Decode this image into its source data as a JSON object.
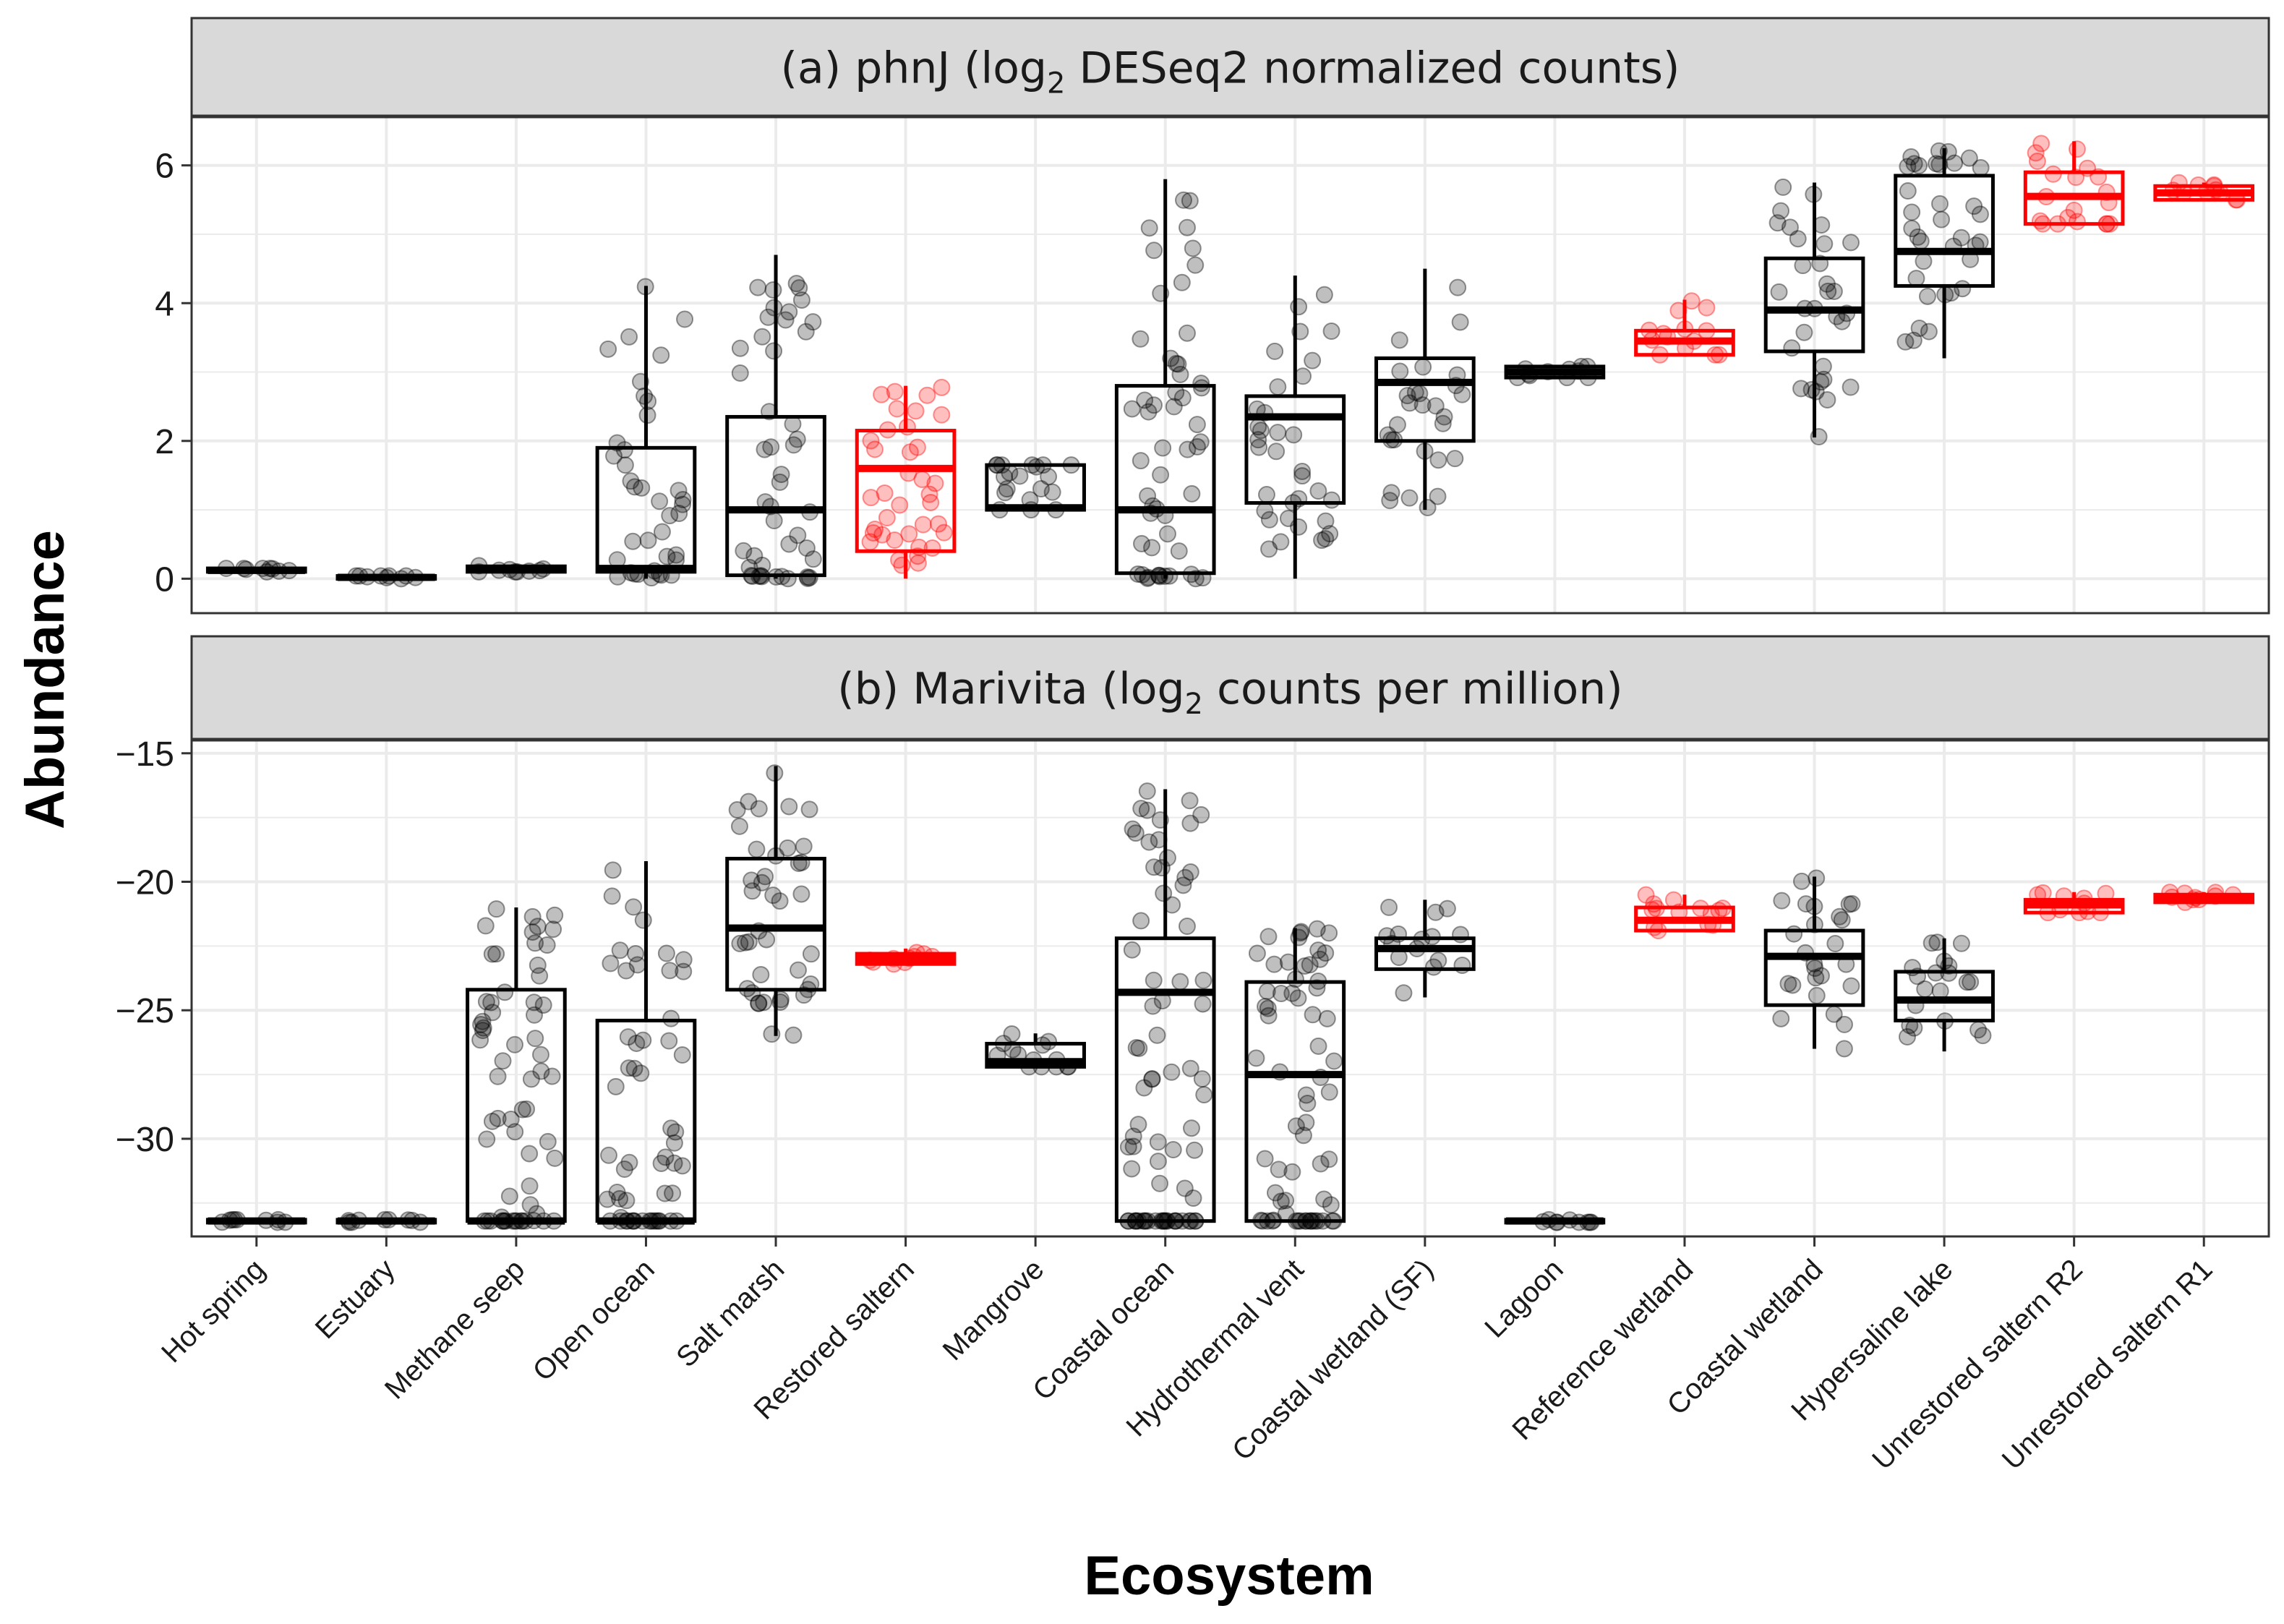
{
  "chart_data": {
    "type": "boxplot",
    "xlabel": "Ecosystem",
    "ylabel": "Abundance",
    "categories": [
      "Hot spring",
      "Estuary",
      "Methane seep",
      "Open ocean",
      "Salt marsh",
      "Restored saltern",
      "Mangrove",
      "Coastal ocean",
      "Hydrothermal vent",
      "Coastal wetland (SF)",
      "Lagoon",
      "Reference wetland",
      "Coastal wetland",
      "Hypersaline lake",
      "Unrestored saltern R2",
      "Unrestored saltern R1"
    ],
    "highlight_categories": [
      "Restored saltern",
      "Reference wetland",
      "Unrestored saltern R2",
      "Unrestored saltern R1"
    ],
    "colors": {
      "default": "#000000",
      "highlight": "#ff0000",
      "strip_fill": "#d9d9d9",
      "grid": "#ebebeb"
    },
    "grid": true,
    "panels": [
      {
        "id": "a",
        "title_prefix": "(a) phnJ (log",
        "title_sub": "2",
        "title_suffix": " DESeq2 normalized counts)",
        "ylim": [
          -0.5,
          6.7
        ],
        "yticks": [
          0,
          2,
          4,
          6
        ],
        "ytick_labels": [
          "0",
          "2",
          "4",
          "6"
        ],
        "boxes": [
          {
            "q1": 0.1,
            "median": 0.12,
            "q3": 0.15,
            "whisker_low": 0.1,
            "whisker_high": 0.15
          },
          {
            "q1": 0.0,
            "median": 0.02,
            "q3": 0.04,
            "whisker_low": 0.0,
            "whisker_high": 0.04
          },
          {
            "q1": 0.1,
            "median": 0.13,
            "q3": 0.18,
            "whisker_low": 0.1,
            "whisker_high": 0.2
          },
          {
            "q1": 0.1,
            "median": 0.15,
            "q3": 1.9,
            "whisker_low": 0.0,
            "whisker_high": 4.25
          },
          {
            "q1": 0.05,
            "median": 1.0,
            "q3": 2.35,
            "whisker_low": 0.0,
            "whisker_high": 4.7
          },
          {
            "q1": 0.4,
            "median": 1.6,
            "q3": 2.15,
            "whisker_low": 0.0,
            "whisker_high": 2.8
          },
          {
            "q1": 1.0,
            "median": 1.03,
            "q3": 1.65,
            "whisker_low": 1.0,
            "whisker_high": 1.65
          },
          {
            "q1": 0.08,
            "median": 1.0,
            "q3": 2.8,
            "whisker_low": 0.0,
            "whisker_high": 5.8
          },
          {
            "q1": 1.1,
            "median": 2.35,
            "q3": 2.65,
            "whisker_low": 0.0,
            "whisker_high": 4.4
          },
          {
            "q1": 2.0,
            "median": 2.85,
            "q3": 3.2,
            "whisker_low": 1.0,
            "whisker_high": 4.5
          },
          {
            "q1": 2.92,
            "median": 3.0,
            "q3": 3.08,
            "whisker_low": 2.92,
            "whisker_high": 3.08
          },
          {
            "q1": 3.25,
            "median": 3.45,
            "q3": 3.6,
            "whisker_low": 3.25,
            "whisker_high": 4.05
          },
          {
            "q1": 3.3,
            "median": 3.9,
            "q3": 4.65,
            "whisker_low": 2.05,
            "whisker_high": 5.75
          },
          {
            "q1": 4.25,
            "median": 4.75,
            "q3": 5.85,
            "whisker_low": 3.2,
            "whisker_high": 6.25
          },
          {
            "q1": 5.15,
            "median": 5.55,
            "q3": 5.9,
            "whisker_low": 5.15,
            "whisker_high": 6.35
          },
          {
            "q1": 5.5,
            "median": 5.6,
            "q3": 5.7,
            "whisker_low": 5.5,
            "whisker_high": 5.75
          }
        ]
      },
      {
        "id": "b",
        "title_prefix": "(b) Marivita (log",
        "title_sub": "2",
        "title_suffix": " counts per million)",
        "ylim": [
          -33.8,
          -14.5
        ],
        "yticks": [
          -30,
          -25,
          -20,
          -15
        ],
        "ytick_labels": [
          "−30",
          "−25",
          "−20",
          "−15"
        ],
        "boxes": [
          {
            "q1": -33.25,
            "median": -33.2,
            "q3": -33.15,
            "whisker_low": -33.25,
            "whisker_high": -33.15
          },
          {
            "q1": -33.25,
            "median": -33.2,
            "q3": -33.15,
            "whisker_low": -33.25,
            "whisker_high": -33.15
          },
          {
            "q1": -33.2,
            "median": -33.2,
            "q3": -24.2,
            "whisker_low": -33.2,
            "whisker_high": -21.0
          },
          {
            "q1": -33.2,
            "median": -33.2,
            "q3": -25.4,
            "whisker_low": -33.2,
            "whisker_high": -19.2
          },
          {
            "q1": -24.2,
            "median": -21.8,
            "q3": -19.1,
            "whisker_low": -26.0,
            "whisker_high": -15.5
          },
          {
            "q1": -23.2,
            "median": -23.0,
            "q3": -22.8,
            "whisker_low": -23.2,
            "whisker_high": -22.6
          },
          {
            "q1": -27.2,
            "median": -27.0,
            "q3": -26.3,
            "whisker_low": -27.2,
            "whisker_high": -25.9
          },
          {
            "q1": -33.2,
            "median": -24.3,
            "q3": -22.2,
            "whisker_low": -33.2,
            "whisker_high": -16.4
          },
          {
            "q1": -33.2,
            "median": -27.5,
            "q3": -23.9,
            "whisker_low": -33.2,
            "whisker_high": -21.8
          },
          {
            "q1": -23.4,
            "median": -22.6,
            "q3": -22.2,
            "whisker_low": -24.5,
            "whisker_high": -20.7
          },
          {
            "q1": -33.25,
            "median": -33.2,
            "q3": -33.15,
            "whisker_low": -33.25,
            "whisker_high": -33.15
          },
          {
            "q1": -21.9,
            "median": -21.5,
            "q3": -21.0,
            "whisker_low": -21.9,
            "whisker_high": -20.5
          },
          {
            "q1": -24.8,
            "median": -22.9,
            "q3": -21.9,
            "whisker_low": -26.5,
            "whisker_high": -19.8
          },
          {
            "q1": -25.4,
            "median": -24.6,
            "q3": -23.5,
            "whisker_low": -26.6,
            "whisker_high": -22.2
          },
          {
            "q1": -21.2,
            "median": -20.9,
            "q3": -20.7,
            "whisker_low": -21.2,
            "whisker_high": -20.4
          },
          {
            "q1": -20.8,
            "median": -20.6,
            "q3": -20.5,
            "whisker_low": -20.8,
            "whisker_high": -20.4
          }
        ]
      }
    ]
  }
}
